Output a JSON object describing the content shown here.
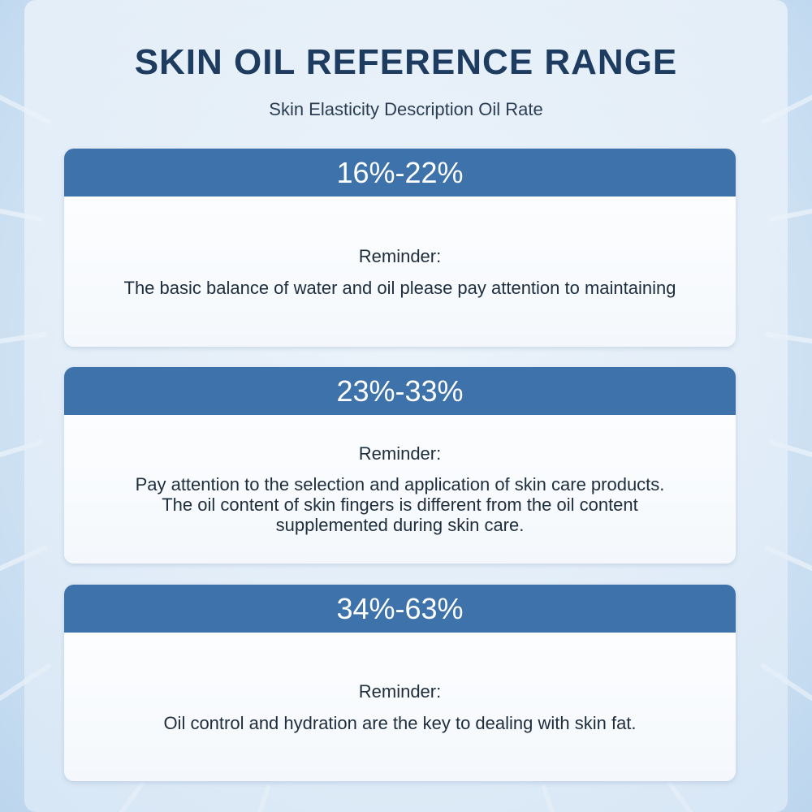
{
  "title": "SKIN OIL REFERENCE RANGE",
  "subtitle": "Skin Elasticity Description Oil Rate",
  "colors": {
    "header_band": "#3e72aa",
    "title_text": "#1d3c5f",
    "background": "#dbe9f6"
  },
  "cards": [
    {
      "range": "16%-22%",
      "reminder_label": "Reminder:",
      "text": "The basic balance of water and oil please pay attention to maintaining"
    },
    {
      "range": "23%-33%",
      "reminder_label": "Reminder:",
      "text": "Pay attention to the selection and application of skin care products.\nThe oil content of skin fingers is different from the oil content\nsupplemented during skin care."
    },
    {
      "range": "34%-63%",
      "reminder_label": "Reminder:",
      "text": "Oil control and hydration are the key to dealing with skin fat."
    }
  ]
}
